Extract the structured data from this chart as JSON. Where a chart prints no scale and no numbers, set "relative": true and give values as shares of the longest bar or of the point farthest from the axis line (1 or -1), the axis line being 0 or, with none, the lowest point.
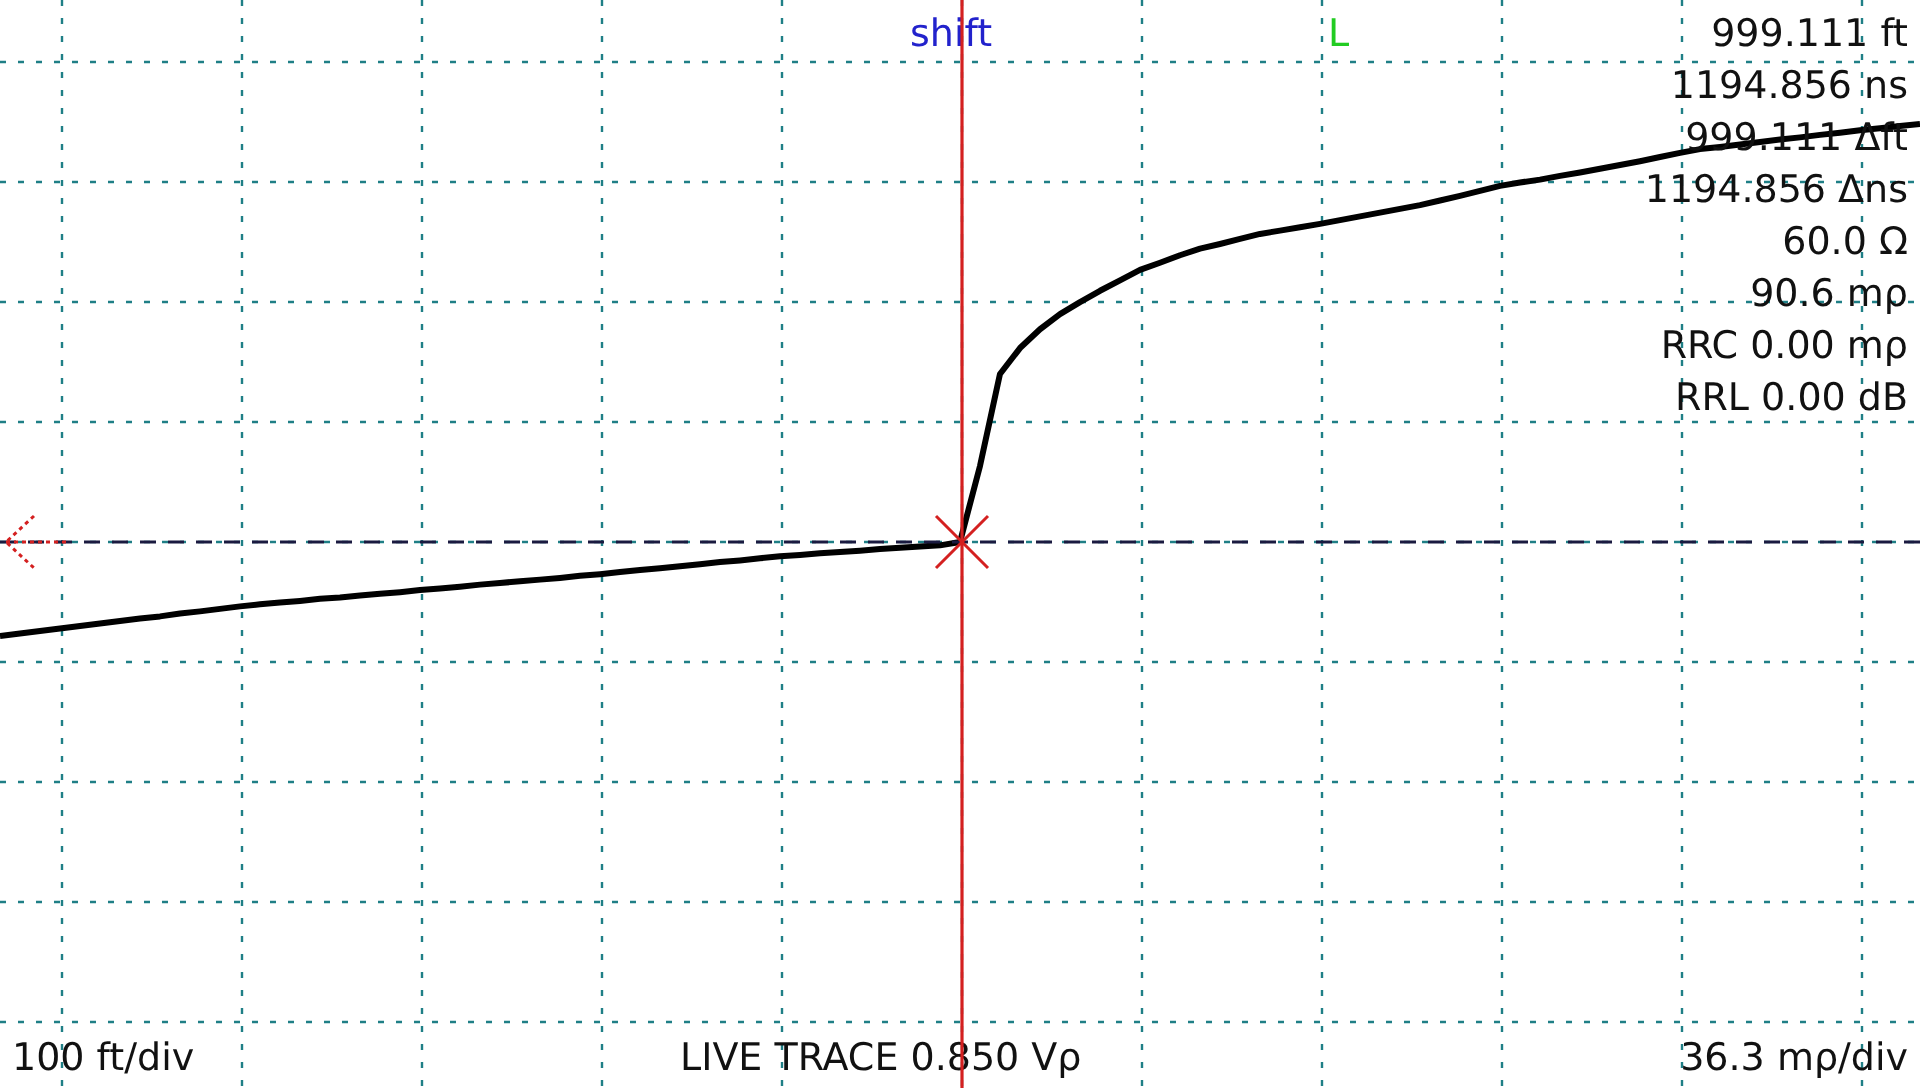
{
  "chart_data": {
    "type": "line",
    "relative": true,
    "categories": [
      null,
      null,
      null,
      null,
      null,
      null,
      null,
      null,
      null,
      null,
      null,
      null,
      null,
      null,
      null,
      null,
      null,
      null,
      null,
      null,
      null,
      null,
      null,
      null,
      null,
      null,
      null,
      null,
      null,
      null,
      null,
      null,
      null,
      null,
      null,
      null,
      null,
      null,
      null,
      null,
      null,
      null,
      null,
      null,
      null,
      null,
      null,
      null,
      null,
      null,
      null,
      null,
      null,
      null,
      null,
      null,
      null,
      null,
      null,
      null,
      null,
      null,
      null,
      null,
      null,
      null,
      null,
      null,
      null,
      null,
      null,
      null,
      null,
      null,
      null,
      null,
      null,
      null,
      null,
      null,
      null,
      null,
      null,
      null,
      null,
      null,
      null,
      null,
      null,
      null,
      null,
      null,
      null,
      null,
      null,
      null,
      null
    ],
    "series": [
      {
        "color": "#000000",
        "values": [
          -0.225,
          -0.219,
          -0.213,
          -0.207,
          -0.201,
          -0.195,
          -0.189,
          -0.183,
          -0.178,
          -0.171,
          -0.166,
          -0.16,
          -0.154,
          -0.149,
          -0.145,
          -0.141,
          -0.136,
          -0.133,
          -0.128,
          -0.124,
          -0.12,
          -0.115,
          -0.111,
          -0.107,
          -0.102,
          -0.098,
          -0.094,
          -0.09,
          -0.086,
          -0.081,
          -0.077,
          -0.072,
          -0.067,
          -0.063,
          -0.058,
          -0.053,
          -0.048,
          -0.044,
          -0.039,
          -0.034,
          -0.031,
          -0.027,
          -0.024,
          -0.021,
          -0.017,
          -0.014,
          -0.011,
          -0.008,
          0,
          0.182,
          0.402,
          0.464,
          0.509,
          0.545,
          0.574,
          0.601,
          0.626,
          0.651,
          0.668,
          0.686,
          0.702,
          0.713,
          0.725,
          0.737,
          0.745,
          0.753,
          0.761,
          0.77,
          0.779,
          0.788,
          0.797,
          0.806,
          0.817,
          0.828,
          0.84,
          0.852,
          0.86,
          0.867,
          0.876,
          0.884,
          0.893,
          0.902,
          0.911,
          0.921,
          0.931,
          0.94,
          0.945,
          0.951,
          0.957,
          0.963,
          0.968,
          0.974,
          0.979,
          0.985,
          0.99,
          0.995,
          1
        ]
      }
    ],
    "tick_labels": false,
    "grid": true,
    "legend": false,
    "marker": "none",
    "line_style": "solid",
    "ref_lines": [
      {
        "axis": "y",
        "value": 0,
        "color": "#1a1a40",
        "line_style": "dashed"
      }
    ],
    "annotations": [
      "shift",
      "L",
      "999.111 ft",
      "1194.856 ns",
      "999.111 Δft",
      "1194.856 Δns",
      "60.0 Ω",
      "90.6 mρ",
      "RRC 0.00 mρ",
      "RRL 0.00 dB",
      "100 ft/div",
      "LIVE TRACE 0.850 Vρ",
      "36.3 mρ/div"
    ]
  }
}
